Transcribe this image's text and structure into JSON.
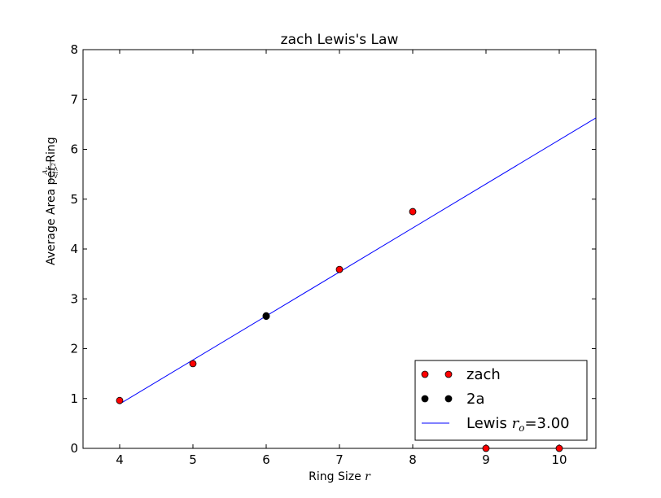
{
  "chart_data": {
    "type": "scatter",
    "title": "zach Lewis's Law",
    "xlabel": "Ring Size",
    "xlabel_math": "r",
    "ylabel": "Average Area per Ring",
    "ylabel_math": {
      "numerator": "A",
      "numerator_sub": "r",
      "denominator": "<l>",
      "denominator_sup": "2"
    },
    "xlim": [
      3.5,
      10.5
    ],
    "ylim": [
      0,
      8
    ],
    "xticks": [
      4,
      5,
      6,
      7,
      8,
      9,
      10
    ],
    "yticks": [
      0,
      1,
      2,
      3,
      4,
      5,
      6,
      7,
      8
    ],
    "grid": false,
    "legend_position": "lower-right",
    "series": [
      {
        "name": "zach",
        "kind": "points",
        "color": "#ff0000",
        "x": [
          4,
          5,
          6,
          7,
          8,
          9,
          10
        ],
        "y": [
          0.96,
          1.7,
          2.66,
          3.59,
          4.75,
          0,
          0
        ]
      },
      {
        "name": "2a",
        "kind": "points",
        "color": "#000000",
        "x": [
          6
        ],
        "y": [
          2.65
        ]
      },
      {
        "name": "Lewis",
        "name_math": "r",
        "name_math_sub": "o",
        "name_suffix": "=3.00",
        "kind": "line",
        "color": "#0000ff",
        "x": [
          4,
          10.5
        ],
        "y": [
          0.89,
          6.63
        ]
      }
    ]
  }
}
